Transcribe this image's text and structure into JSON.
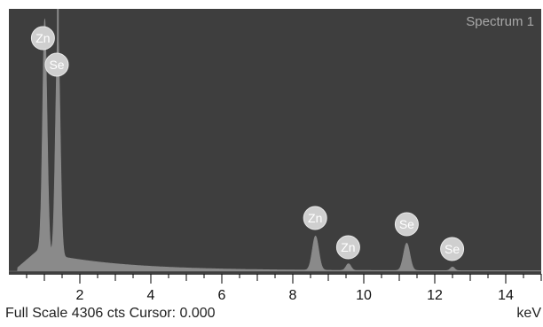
{
  "spectrum": {
    "title": "Spectrum 1",
    "footer": {
      "full_scale": "Full Scale 4306 cts Cursor: 0.000",
      "unit": "keV"
    },
    "colors": {
      "background": "#3e3e3e",
      "trace": "#8a8a8a",
      "label_fill": "#cfcfcf",
      "label_text": "#ffffff"
    }
  },
  "chart_data": {
    "type": "area",
    "title": "Spectrum 1",
    "xlabel": "keV",
    "ylabel": "",
    "xlim": [
      0,
      15
    ],
    "ylim": [
      0,
      4306
    ],
    "x_ticks": [
      2,
      4,
      6,
      8,
      10,
      12,
      14
    ],
    "grid": false,
    "peaks": [
      {
        "x": 1.01,
        "y": 3830
      },
      {
        "x": 1.38,
        "y": 3640
      },
      {
        "x": 8.64,
        "y": 560
      },
      {
        "x": 9.57,
        "y": 110
      },
      {
        "x": 11.21,
        "y": 450
      },
      {
        "x": 12.5,
        "y": 60
      }
    ],
    "peak_labels": [
      {
        "label": "Zn",
        "x": 0.96
      },
      {
        "label": "Se",
        "x": 1.35
      },
      {
        "label": "Zn",
        "x": 8.63
      },
      {
        "label": "Zn",
        "x": 9.56
      },
      {
        "label": "Se",
        "x": 11.21
      },
      {
        "label": "Se",
        "x": 12.49
      }
    ]
  }
}
